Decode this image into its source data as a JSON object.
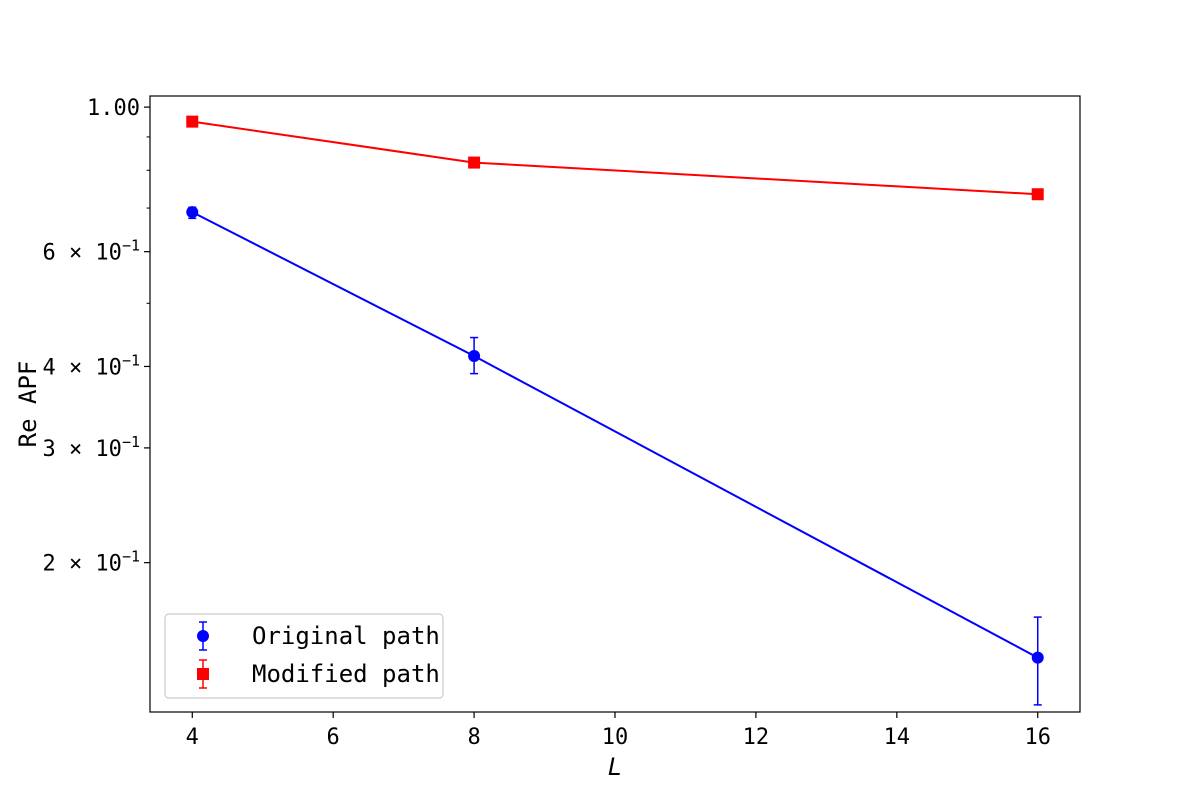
{
  "chart_data": {
    "type": "line",
    "xlabel": "L",
    "ylabel": "Re APF",
    "xlim": [
      3.4,
      16.6
    ],
    "ylim": [
      0.118,
      1.04
    ],
    "yscale": "log",
    "grid": false,
    "legend_position": "lower-left",
    "x_ticks": [
      4,
      6,
      8,
      10,
      12,
      14,
      16
    ],
    "x_tick_labels": [
      "4",
      "6",
      "8",
      "10",
      "12",
      "14",
      "16"
    ],
    "y_major_ticks": [
      {
        "value": 1.0,
        "base": "1.00",
        "exp": ""
      },
      {
        "value": 0.6,
        "base": "6 × 10",
        "exp": "−1"
      },
      {
        "value": 0.4,
        "base": "4 × 10",
        "exp": "−1"
      },
      {
        "value": 0.3,
        "base": "3 × 10",
        "exp": "−1"
      },
      {
        "value": 0.2,
        "base": "2 × 10",
        "exp": "−1"
      }
    ],
    "y_minor_ticks": [
      0.9,
      0.8,
      0.7,
      0.5
    ],
    "series": [
      {
        "name": "Original path",
        "color": "#0000ff",
        "marker": "circle",
        "x": [
          4,
          8,
          16
        ],
        "y": [
          0.69,
          0.415,
          0.143
        ],
        "yerr_low": [
          0.675,
          0.39,
          0.121
        ],
        "yerr_high": [
          0.702,
          0.443,
          0.165
        ]
      },
      {
        "name": "Modified path",
        "color": "#ff0000",
        "marker": "square",
        "x": [
          4,
          8,
          16
        ],
        "y": [
          0.95,
          0.822,
          0.735
        ],
        "yerr_low": [
          0.945,
          0.817,
          0.73
        ],
        "yerr_high": [
          0.955,
          0.827,
          0.74
        ]
      }
    ]
  }
}
